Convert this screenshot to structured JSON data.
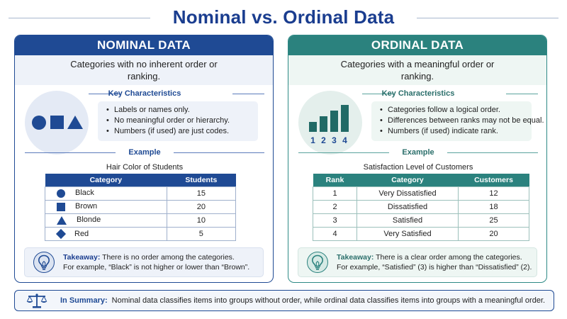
{
  "page": {
    "title": "Nominal vs. Ordinal Data"
  },
  "nominal": {
    "header": "NOMINAL DATA",
    "description": "Categories with no inherent order or ranking.",
    "key_title": "Key Characteristics",
    "characteristics": [
      "Labels or names only.",
      "No meaningful order or hierarchy.",
      "Numbers (if used) are just codes."
    ],
    "example_title": "Example",
    "table_title": "Hair Color of Students",
    "columns": [
      "Category",
      "Students"
    ],
    "rows": [
      {
        "shape": "circle",
        "category": "Black",
        "value": "15"
      },
      {
        "shape": "square",
        "category": "Brown",
        "value": "20"
      },
      {
        "shape": "triangle",
        "category": "Blonde",
        "value": "10"
      },
      {
        "shape": "diamond",
        "category": "Red",
        "value": "5"
      }
    ],
    "takeaway_label": "Takeaway:",
    "takeaway_line1": " There is no order among the categories.",
    "takeaway_line2": "For example, “Black” is not higher or lower than “Brown”.",
    "accent": "#1f4a94"
  },
  "ordinal": {
    "header": "ORDINAL DATA",
    "description": "Categories with a meaningful order or ranking.",
    "key_title": "Key Characteristics",
    "characteristics": [
      "Categories follow a logical order.",
      "Differences between ranks may not be equal.",
      "Numbers (if used) indicate rank."
    ],
    "icon_numbers": [
      "1",
      "2",
      "3",
      "4"
    ],
    "example_title": "Example",
    "table_title": "Satisfaction Level of Customers",
    "columns": [
      "Rank",
      "Category",
      "Customers"
    ],
    "rows": [
      {
        "rank": "1",
        "category": "Very Dissatisfied",
        "value": "12"
      },
      {
        "rank": "2",
        "category": "Dissatisfied",
        "value": "18"
      },
      {
        "rank": "3",
        "category": "Satisfied",
        "value": "25"
      },
      {
        "rank": "4",
        "category": "Very Satisfied",
        "value": "20"
      }
    ],
    "takeaway_label": "Takeaway:",
    "takeaway_line1": " There is a clear order among the categories.",
    "takeaway_line2": "For example, “Satisfied” (3) is higher than “Dissatisfied” (2).",
    "accent": "#2b827e"
  },
  "summary": {
    "label": "In Summary:",
    "text": "Nominal data classifies items into groups without order, while ordinal data classifies items into groups with a meaningful order."
  },
  "icons": {
    "nominal_icon": "shapes-icon",
    "ordinal_icon": "ranked-bars-icon",
    "takeaway_icon": "lightbulb-icon",
    "summary_icon": "balance-scale-icon"
  }
}
